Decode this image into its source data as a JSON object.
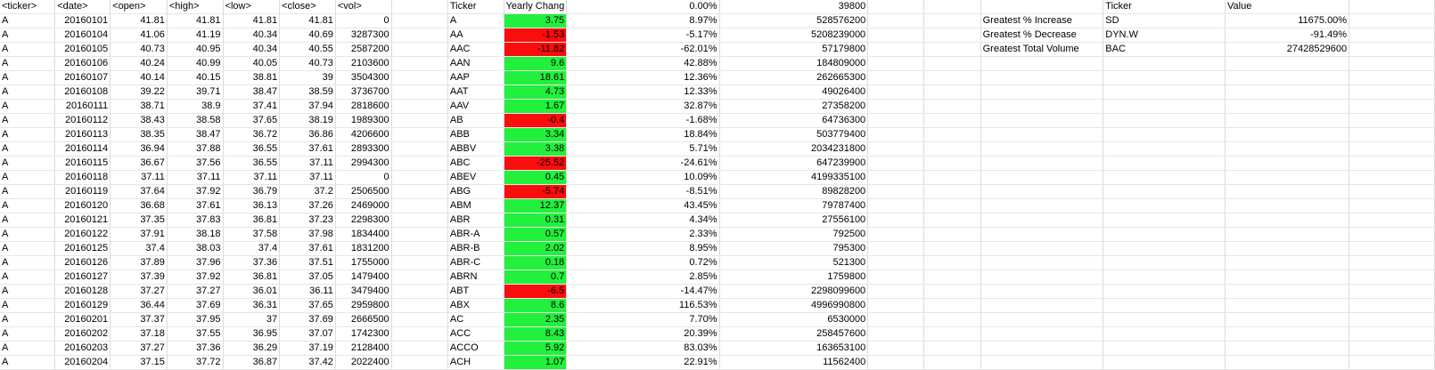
{
  "headers": {
    "ticker": "<ticker>",
    "date": "<date>",
    "open": "<open>",
    "high": "<high>",
    "low": "<low>",
    "close": "<close>",
    "vol": "<vol>",
    "summary_ticker": "Ticker",
    "yearly_change": "Yearly Chang",
    "pct_change": "0.00%",
    "total_volume": "39800",
    "stats_ticker": "Ticker",
    "stats_value": "Value"
  },
  "raw_rows": [
    {
      "ticker": "A",
      "date": "20160101",
      "open": "41.81",
      "high": "41.81",
      "low": "41.81",
      "close": "41.81",
      "vol": "0"
    },
    {
      "ticker": "A",
      "date": "20160104",
      "open": "41.06",
      "high": "41.19",
      "low": "40.34",
      "close": "40.69",
      "vol": "3287300"
    },
    {
      "ticker": "A",
      "date": "20160105",
      "open": "40.73",
      "high": "40.95",
      "low": "40.34",
      "close": "40.55",
      "vol": "2587200"
    },
    {
      "ticker": "A",
      "date": "20160106",
      "open": "40.24",
      "high": "40.99",
      "low": "40.05",
      "close": "40.73",
      "vol": "2103600"
    },
    {
      "ticker": "A",
      "date": "20160107",
      "open": "40.14",
      "high": "40.15",
      "low": "38.81",
      "close": "39",
      "vol": "3504300"
    },
    {
      "ticker": "A",
      "date": "20160108",
      "open": "39.22",
      "high": "39.71",
      "low": "38.47",
      "close": "38.59",
      "vol": "3736700"
    },
    {
      "ticker": "A",
      "date": "20160111",
      "open": "38.71",
      "high": "38.9",
      "low": "37.41",
      "close": "37.94",
      "vol": "2818600"
    },
    {
      "ticker": "A",
      "date": "20160112",
      "open": "38.43",
      "high": "38.58",
      "low": "37.65",
      "close": "38.19",
      "vol": "1989300"
    },
    {
      "ticker": "A",
      "date": "20160113",
      "open": "38.35",
      "high": "38.47",
      "low": "36.72",
      "close": "36.86",
      "vol": "4206600"
    },
    {
      "ticker": "A",
      "date": "20160114",
      "open": "36.94",
      "high": "37.88",
      "low": "36.55",
      "close": "37.61",
      "vol": "2893300"
    },
    {
      "ticker": "A",
      "date": "20160115",
      "open": "36.67",
      "high": "37.56",
      "low": "36.55",
      "close": "37.11",
      "vol": "2994300"
    },
    {
      "ticker": "A",
      "date": "20160118",
      "open": "37.11",
      "high": "37.11",
      "low": "37.11",
      "close": "37.11",
      "vol": "0"
    },
    {
      "ticker": "A",
      "date": "20160119",
      "open": "37.64",
      "high": "37.92",
      "low": "36.79",
      "close": "37.2",
      "vol": "2506500"
    },
    {
      "ticker": "A",
      "date": "20160120",
      "open": "36.68",
      "high": "37.61",
      "low": "36.13",
      "close": "37.26",
      "vol": "2469000"
    },
    {
      "ticker": "A",
      "date": "20160121",
      "open": "37.35",
      "high": "37.83",
      "low": "36.81",
      "close": "37.23",
      "vol": "2298300"
    },
    {
      "ticker": "A",
      "date": "20160122",
      "open": "37.91",
      "high": "38.18",
      "low": "37.58",
      "close": "37.98",
      "vol": "1834400"
    },
    {
      "ticker": "A",
      "date": "20160125",
      "open": "37.4",
      "high": "38.03",
      "low": "37.4",
      "close": "37.61",
      "vol": "1831200"
    },
    {
      "ticker": "A",
      "date": "20160126",
      "open": "37.89",
      "high": "37.96",
      "low": "37.36",
      "close": "37.51",
      "vol": "1755000"
    },
    {
      "ticker": "A",
      "date": "20160127",
      "open": "37.39",
      "high": "37.92",
      "low": "36.81",
      "close": "37.05",
      "vol": "1479400"
    },
    {
      "ticker": "A",
      "date": "20160128",
      "open": "37.27",
      "high": "37.27",
      "low": "36.01",
      "close": "36.11",
      "vol": "3479400"
    },
    {
      "ticker": "A",
      "date": "20160129",
      "open": "36.44",
      "high": "37.69",
      "low": "36.31",
      "close": "37.65",
      "vol": "2959800"
    },
    {
      "ticker": "A",
      "date": "20160201",
      "open": "37.37",
      "high": "37.95",
      "low": "37",
      "close": "37.69",
      "vol": "2666500"
    },
    {
      "ticker": "A",
      "date": "20160202",
      "open": "37.18",
      "high": "37.55",
      "low": "36.95",
      "close": "37.07",
      "vol": "1742300"
    },
    {
      "ticker": "A",
      "date": "20160203",
      "open": "37.27",
      "high": "37.36",
      "low": "36.29",
      "close": "37.19",
      "vol": "2128400"
    },
    {
      "ticker": "A",
      "date": "20160204",
      "open": "37.15",
      "high": "37.72",
      "low": "36.87",
      "close": "37.42",
      "vol": "2022400"
    }
  ],
  "summary_rows": [
    {
      "ticker": "A",
      "yearly": "3.75",
      "sign": "pos",
      "pct": "8.97%",
      "vol": "528576200"
    },
    {
      "ticker": "AA",
      "yearly": "-1.53",
      "sign": "neg",
      "pct": "-5.17%",
      "vol": "5208239000"
    },
    {
      "ticker": "AAC",
      "yearly": "-11.82",
      "sign": "neg",
      "pct": "-62.01%",
      "vol": "57179800"
    },
    {
      "ticker": "AAN",
      "yearly": "9.6",
      "sign": "pos",
      "pct": "42.88%",
      "vol": "184809000"
    },
    {
      "ticker": "AAP",
      "yearly": "18.61",
      "sign": "pos",
      "pct": "12.36%",
      "vol": "262665300"
    },
    {
      "ticker": "AAT",
      "yearly": "4.73",
      "sign": "pos",
      "pct": "12.33%",
      "vol": "49026400"
    },
    {
      "ticker": "AAV",
      "yearly": "1.67",
      "sign": "pos",
      "pct": "32.87%",
      "vol": "27358200"
    },
    {
      "ticker": "AB",
      "yearly": "-0.4",
      "sign": "neg",
      "pct": "-1.68%",
      "vol": "64736300"
    },
    {
      "ticker": "ABB",
      "yearly": "3.34",
      "sign": "pos",
      "pct": "18.84%",
      "vol": "503779400"
    },
    {
      "ticker": "ABBV",
      "yearly": "3.38",
      "sign": "pos",
      "pct": "5.71%",
      "vol": "2034231800"
    },
    {
      "ticker": "ABC",
      "yearly": "-25.52",
      "sign": "neg",
      "pct": "-24.61%",
      "vol": "647239900"
    },
    {
      "ticker": "ABEV",
      "yearly": "0.45",
      "sign": "pos",
      "pct": "10.09%",
      "vol": "4199335100"
    },
    {
      "ticker": "ABG",
      "yearly": "-5.74",
      "sign": "neg",
      "pct": "-8.51%",
      "vol": "89828200"
    },
    {
      "ticker": "ABM",
      "yearly": "12.37",
      "sign": "pos",
      "pct": "43.45%",
      "vol": "79787400"
    },
    {
      "ticker": "ABR",
      "yearly": "0.31",
      "sign": "pos",
      "pct": "4.34%",
      "vol": "27556100"
    },
    {
      "ticker": "ABR-A",
      "yearly": "0.57",
      "sign": "pos",
      "pct": "2.33%",
      "vol": "792500"
    },
    {
      "ticker": "ABR-B",
      "yearly": "2.02",
      "sign": "pos",
      "pct": "8.95%",
      "vol": "795300"
    },
    {
      "ticker": "ABR-C",
      "yearly": "0.18",
      "sign": "pos",
      "pct": "0.72%",
      "vol": "521300"
    },
    {
      "ticker": "ABRN",
      "yearly": "0.7",
      "sign": "pos",
      "pct": "2.85%",
      "vol": "1759800"
    },
    {
      "ticker": "ABT",
      "yearly": "-6.5",
      "sign": "neg",
      "pct": "-14.47%",
      "vol": "2298099600"
    },
    {
      "ticker": "ABX",
      "yearly": "8.6",
      "sign": "pos",
      "pct": "116.53%",
      "vol": "4996990800"
    },
    {
      "ticker": "AC",
      "yearly": "2.35",
      "sign": "pos",
      "pct": "7.70%",
      "vol": "6530000"
    },
    {
      "ticker": "ACC",
      "yearly": "8.43",
      "sign": "pos",
      "pct": "20.39%",
      "vol": "258457600"
    },
    {
      "ticker": "ACCO",
      "yearly": "5.92",
      "sign": "pos",
      "pct": "83.03%",
      "vol": "163653100"
    },
    {
      "ticker": "ACH",
      "yearly": "1.07",
      "sign": "pos",
      "pct": "22.91%",
      "vol": "11562400"
    }
  ],
  "stats_rows": [
    {
      "label": "Greatest % Increase",
      "ticker": "SD",
      "value": "11675.00%"
    },
    {
      "label": "Greatest % Decrease",
      "ticker": "DYN.W",
      "value": "-91.49%"
    },
    {
      "label": "Greatest Total Volume",
      "ticker": "BAC",
      "value": "27428529600"
    }
  ],
  "colors": {
    "positive": "#22f03c",
    "negative": "#fb0d0d",
    "gridline": "#dcdcdc"
  }
}
